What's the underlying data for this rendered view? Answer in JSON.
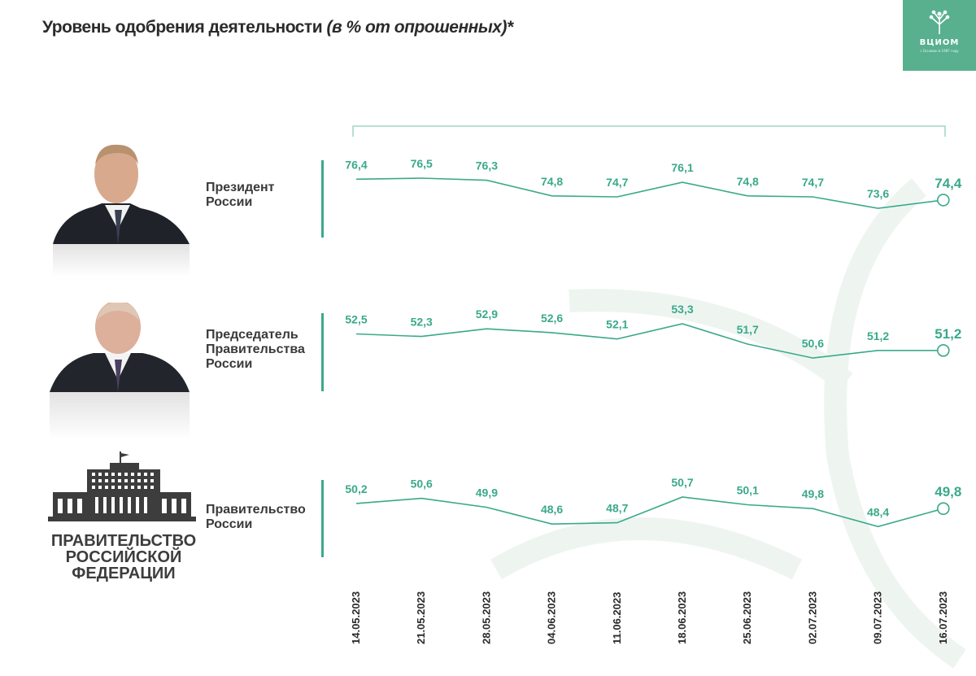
{
  "title": {
    "main": "Уровень одобрения деятельности ",
    "sub": "(в % от опрошенных)*"
  },
  "logo": {
    "text": "ВЦИОМ",
    "tagline": "с Основан в 1987 году"
  },
  "emblem": {
    "line1": "ПРАВИТЕЛЬСТВО",
    "line2": "РОССИЙСКОЙ",
    "line3": "ФЕДЕРАЦИИ"
  },
  "colors": {
    "accent": "#3aa98a",
    "logo_bg": "#58b08f",
    "text": "#2b2b2b"
  },
  "chart_data": {
    "type": "line",
    "categories": [
      "14.05.2023",
      "21.05.2023",
      "28.05.2023",
      "04.06.2023",
      "11.06.2023",
      "18.06.2023",
      "25.06.2023",
      "02.07.2023",
      "09.07.2023",
      "16.07.2023"
    ],
    "series": [
      {
        "name_lines": [
          "Президент",
          "России"
        ],
        "values": [
          76.4,
          76.5,
          76.3,
          74.8,
          74.7,
          76.1,
          74.8,
          74.7,
          73.6,
          74.4
        ],
        "labels": [
          "76,4",
          "76,5",
          "76,3",
          "74,8",
          "74,7",
          "76,1",
          "74,8",
          "74,7",
          "73,6",
          "74,4"
        ]
      },
      {
        "name_lines": [
          "Председатель",
          "Правительства",
          "России"
        ],
        "values": [
          52.5,
          52.3,
          52.9,
          52.6,
          52.1,
          53.3,
          51.7,
          50.6,
          51.2,
          51.2
        ],
        "labels": [
          "52,5",
          "52,3",
          "52,9",
          "52,6",
          "52,1",
          "53,3",
          "51,7",
          "50,6",
          "51,2",
          "51,2"
        ]
      },
      {
        "name_lines": [
          "Правительство",
          "России"
        ],
        "values": [
          50.2,
          50.6,
          49.9,
          48.6,
          48.7,
          50.7,
          50.1,
          49.8,
          48.4,
          49.8
        ],
        "labels": [
          "50,2",
          "50,6",
          "49,9",
          "48,6",
          "48,7",
          "50,7",
          "50,1",
          "49,8",
          "48,4",
          "49,8"
        ]
      }
    ]
  }
}
